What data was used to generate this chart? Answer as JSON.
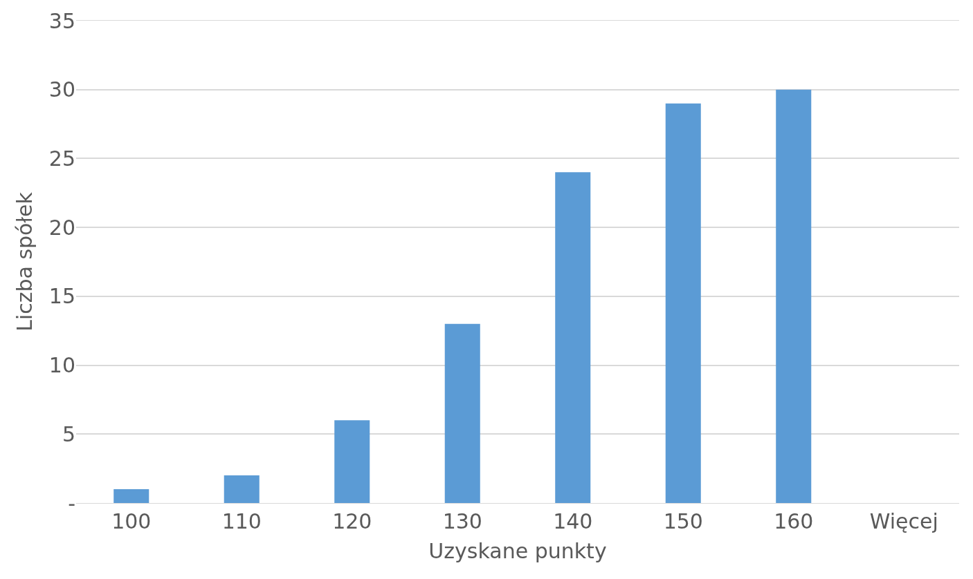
{
  "chart_data": {
    "type": "bar",
    "xlabel": "Uzyskane punkty",
    "ylabel": "Liczba spółek",
    "categories": [
      "100",
      "110",
      "120",
      "130",
      "140",
      "150",
      "160",
      "Więcej"
    ],
    "values": [
      1,
      2,
      6,
      13,
      24,
      29,
      30,
      0
    ],
    "color": "#5b9bd5",
    "ylim": [
      0,
      35
    ],
    "yticks": [
      {
        "value": 0,
        "label": "-"
      },
      5,
      10,
      15,
      20,
      25,
      30,
      35
    ],
    "grid": "y"
  }
}
